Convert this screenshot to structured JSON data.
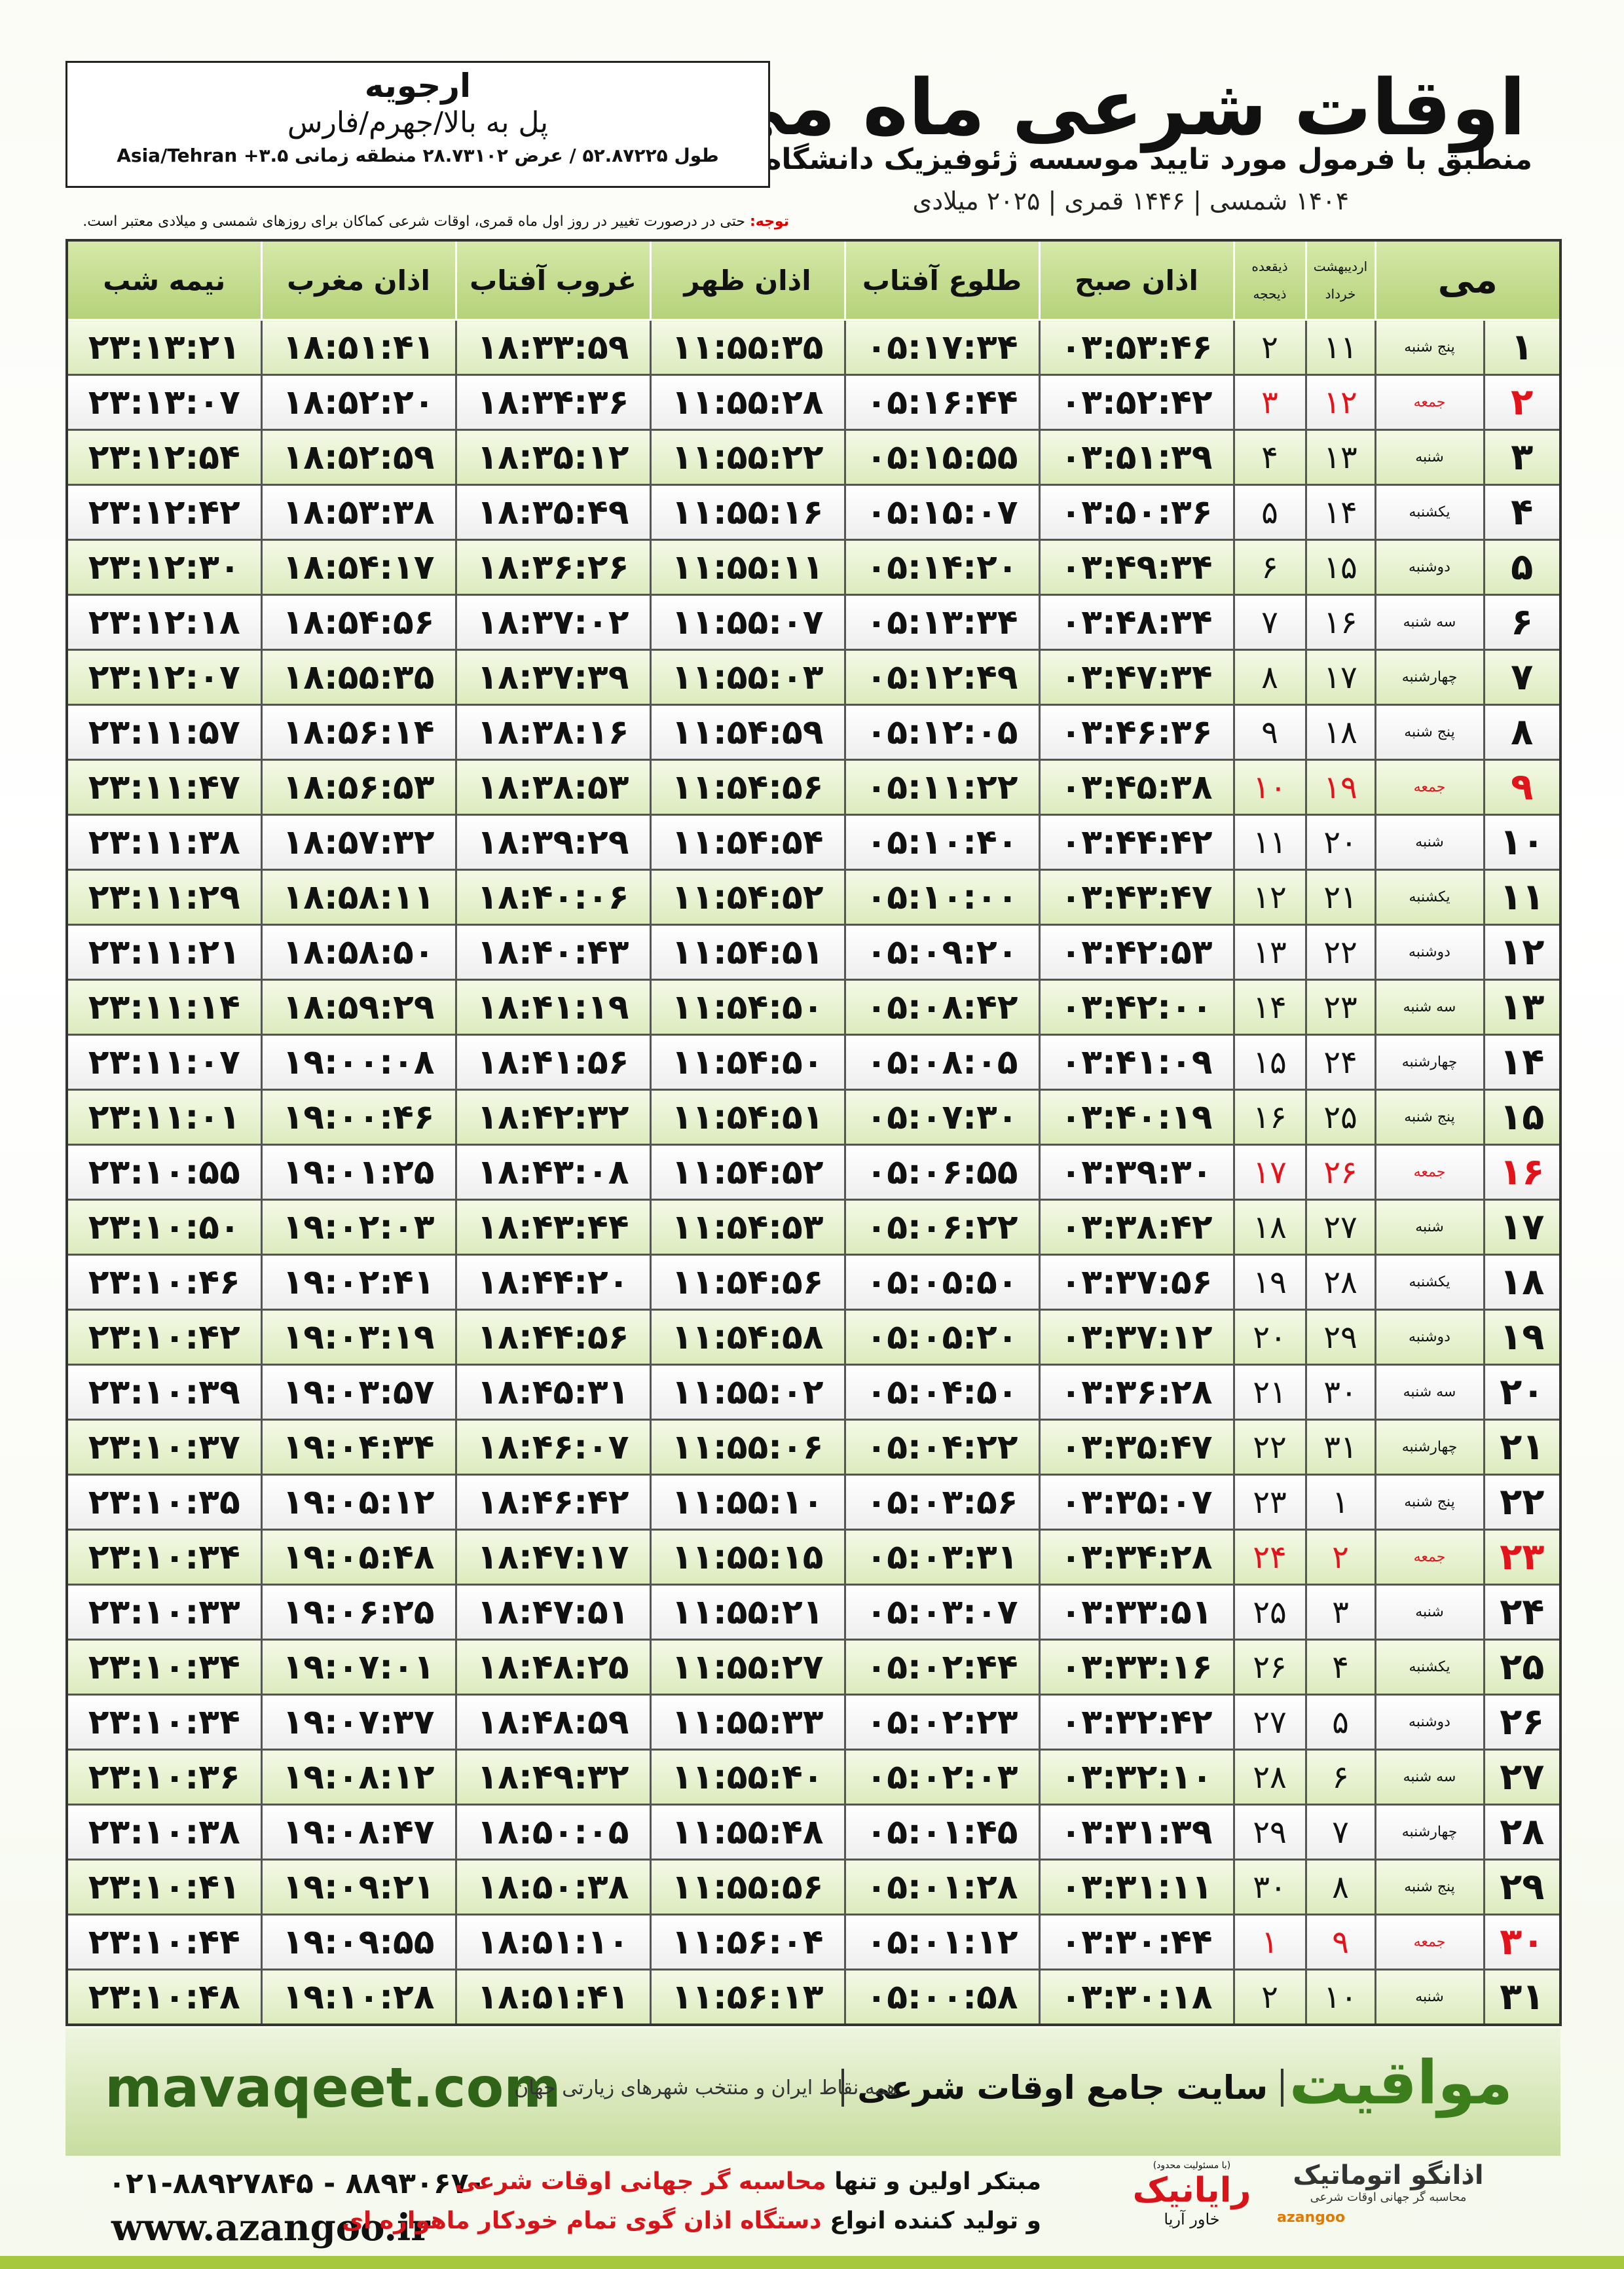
{
  "header": {
    "title": "اوقات شرعی ماه می",
    "subtitle": "منطبق با فرمول مورد تایید موسسه ژئوفیزیک دانشگاه تهران",
    "dates": "۱۴۰۴ شمسی | ۱۴۴۶ قمری | ۲۰۲۵ میلادی"
  },
  "location": {
    "name": "ارجویه",
    "region": "پل به بالا/جهرم/فارس",
    "coords": "طول ۵۲.۸۷۲۲۵ / عرض ۲۸.۷۳۱۰۲ منطقه زمانی ۳.۵+ Asia/Tehran"
  },
  "note": {
    "label": "توجه:",
    "text": "حتی در درصورت تغییر در روز اول ماه قمری، اوقات شرعی کماکان برای روزهای شمسی و میلادی معتبر است."
  },
  "table": {
    "columns": {
      "day": "می",
      "shamsi": [
        "اردیبهشت",
        "خرداد"
      ],
      "qamari": [
        "ذیقعده",
        "ذیحجه"
      ],
      "times": [
        "اذان صبح",
        "طلوع آفتاب",
        "اذان ظهر",
        "غروب آفتاب",
        "اذان مغرب",
        "نیمه شب"
      ]
    },
    "rows": [
      {
        "day": "۱",
        "weekday": "پنج شنبه",
        "shamsi": "۱۱",
        "qamari": "۲",
        "times": [
          "۰۳:۵۳:۴۶",
          "۰۵:۱۷:۳۴",
          "۱۱:۵۵:۳۵",
          "۱۸:۳۳:۵۹",
          "۱۸:۵۱:۴۱",
          "۲۳:۱۳:۲۱"
        ]
      },
      {
        "day": "۲",
        "weekday": "جمعه",
        "shamsi": "۱۲",
        "qamari": "۳",
        "times": [
          "۰۳:۵۲:۴۲",
          "۰۵:۱۶:۴۴",
          "۱۱:۵۵:۲۸",
          "۱۸:۳۴:۳۶",
          "۱۸:۵۲:۲۰",
          "۲۳:۱۳:۰۷"
        ],
        "color": "#e2141b"
      },
      {
        "day": "۳",
        "weekday": "شنبه",
        "shamsi": "۱۳",
        "qamari": "۴",
        "times": [
          "۰۳:۵۱:۳۹",
          "۰۵:۱۵:۵۵",
          "۱۱:۵۵:۲۲",
          "۱۸:۳۵:۱۲",
          "۱۸:۵۲:۵۹",
          "۲۳:۱۲:۵۴"
        ]
      },
      {
        "day": "۴",
        "weekday": "یکشنبه",
        "shamsi": "۱۴",
        "qamari": "۵",
        "times": [
          "۰۳:۵۰:۳۶",
          "۰۵:۱۵:۰۷",
          "۱۱:۵۵:۱۶",
          "۱۸:۳۵:۴۹",
          "۱۸:۵۳:۳۸",
          "۲۳:۱۲:۴۲"
        ]
      },
      {
        "day": "۵",
        "weekday": "دوشنبه",
        "shamsi": "۱۵",
        "qamari": "۶",
        "times": [
          "۰۳:۴۹:۳۴",
          "۰۵:۱۴:۲۰",
          "۱۱:۵۵:۱۱",
          "۱۸:۳۶:۲۶",
          "۱۸:۵۴:۱۷",
          "۲۳:۱۲:۳۰"
        ]
      },
      {
        "day": "۶",
        "weekday": "سه شنبه",
        "shamsi": "۱۶",
        "qamari": "۷",
        "times": [
          "۰۳:۴۸:۳۴",
          "۰۵:۱۳:۳۴",
          "۱۱:۵۵:۰۷",
          "۱۸:۳۷:۰۲",
          "۱۸:۵۴:۵۶",
          "۲۳:۱۲:۱۸"
        ]
      },
      {
        "day": "۷",
        "weekday": "چهارشنبه",
        "shamsi": "۱۷",
        "qamari": "۸",
        "times": [
          "۰۳:۴۷:۳۴",
          "۰۵:۱۲:۴۹",
          "۱۱:۵۵:۰۳",
          "۱۸:۳۷:۳۹",
          "۱۸:۵۵:۳۵",
          "۲۳:۱۲:۰۷"
        ]
      },
      {
        "day": "۸",
        "weekday": "پنج شنبه",
        "shamsi": "۱۸",
        "qamari": "۹",
        "times": [
          "۰۳:۴۶:۳۶",
          "۰۵:۱۲:۰۵",
          "۱۱:۵۴:۵۹",
          "۱۸:۳۸:۱۶",
          "۱۸:۵۶:۱۴",
          "۲۳:۱۱:۵۷"
        ]
      },
      {
        "day": "۹",
        "weekday": "جمعه",
        "shamsi": "۱۹",
        "qamari": "۱۰",
        "times": [
          "۰۳:۴۵:۳۸",
          "۰۵:۱۱:۲۲",
          "۱۱:۵۴:۵۶",
          "۱۸:۳۸:۵۳",
          "۱۸:۵۶:۵۳",
          "۲۳:۱۱:۴۷"
        ],
        "color": "#e2141b"
      },
      {
        "day": "۱۰",
        "weekday": "شنبه",
        "shamsi": "۲۰",
        "qamari": "۱۱",
        "times": [
          "۰۳:۴۴:۴۲",
          "۰۵:۱۰:۴۰",
          "۱۱:۵۴:۵۴",
          "۱۸:۳۹:۲۹",
          "۱۸:۵۷:۳۲",
          "۲۳:۱۱:۳۸"
        ]
      },
      {
        "day": "۱۱",
        "weekday": "یکشنبه",
        "shamsi": "۲۱",
        "qamari": "۱۲",
        "times": [
          "۰۳:۴۳:۴۷",
          "۰۵:۱۰:۰۰",
          "۱۱:۵۴:۵۲",
          "۱۸:۴۰:۰۶",
          "۱۸:۵۸:۱۱",
          "۲۳:۱۱:۲۹"
        ]
      },
      {
        "day": "۱۲",
        "weekday": "دوشنبه",
        "shamsi": "۲۲",
        "qamari": "۱۳",
        "times": [
          "۰۳:۴۲:۵۳",
          "۰۵:۰۹:۲۰",
          "۱۱:۵۴:۵۱",
          "۱۸:۴۰:۴۳",
          "۱۸:۵۸:۵۰",
          "۲۳:۱۱:۲۱"
        ]
      },
      {
        "day": "۱۳",
        "weekday": "سه شنبه",
        "shamsi": "۲۳",
        "qamari": "۱۴",
        "times": [
          "۰۳:۴۲:۰۰",
          "۰۵:۰۸:۴۲",
          "۱۱:۵۴:۵۰",
          "۱۸:۴۱:۱۹",
          "۱۸:۵۹:۲۹",
          "۲۳:۱۱:۱۴"
        ]
      },
      {
        "day": "۱۴",
        "weekday": "چهارشنبه",
        "shamsi": "۲۴",
        "qamari": "۱۵",
        "times": [
          "۰۳:۴۱:۰۹",
          "۰۵:۰۸:۰۵",
          "۱۱:۵۴:۵۰",
          "۱۸:۴۱:۵۶",
          "۱۹:۰۰:۰۸",
          "۲۳:۱۱:۰۷"
        ]
      },
      {
        "day": "۱۵",
        "weekday": "پنج شنبه",
        "shamsi": "۲۵",
        "qamari": "۱۶",
        "times": [
          "۰۳:۴۰:۱۹",
          "۰۵:۰۷:۳۰",
          "۱۱:۵۴:۵۱",
          "۱۸:۴۲:۳۲",
          "۱۹:۰۰:۴۶",
          "۲۳:۱۱:۰۱"
        ]
      },
      {
        "day": "۱۶",
        "weekday": "جمعه",
        "shamsi": "۲۶",
        "qamari": "۱۷",
        "times": [
          "۰۳:۳۹:۳۰",
          "۰۵:۰۶:۵۵",
          "۱۱:۵۴:۵۲",
          "۱۸:۴۳:۰۸",
          "۱۹:۰۱:۲۵",
          "۲۳:۱۰:۵۵"
        ],
        "color": "#e2141b"
      },
      {
        "day": "۱۷",
        "weekday": "شنبه",
        "shamsi": "۲۷",
        "qamari": "۱۸",
        "times": [
          "۰۳:۳۸:۴۲",
          "۰۵:۰۶:۲۲",
          "۱۱:۵۴:۵۳",
          "۱۸:۴۳:۴۴",
          "۱۹:۰۲:۰۳",
          "۲۳:۱۰:۵۰"
        ]
      },
      {
        "day": "۱۸",
        "weekday": "یکشنبه",
        "shamsi": "۲۸",
        "qamari": "۱۹",
        "times": [
          "۰۳:۳۷:۵۶",
          "۰۵:۰۵:۵۰",
          "۱۱:۵۴:۵۶",
          "۱۸:۴۴:۲۰",
          "۱۹:۰۲:۴۱",
          "۲۳:۱۰:۴۶"
        ]
      },
      {
        "day": "۱۹",
        "weekday": "دوشنبه",
        "shamsi": "۲۹",
        "qamari": "۲۰",
        "times": [
          "۰۳:۳۷:۱۲",
          "۰۵:۰۵:۲۰",
          "۱۱:۵۴:۵۸",
          "۱۸:۴۴:۵۶",
          "۱۹:۰۳:۱۹",
          "۲۳:۱۰:۴۲"
        ]
      },
      {
        "day": "۲۰",
        "weekday": "سه شنبه",
        "shamsi": "۳۰",
        "qamari": "۲۱",
        "times": [
          "۰۳:۳۶:۲۸",
          "۰۵:۰۴:۵۰",
          "۱۱:۵۵:۰۲",
          "۱۸:۴۵:۳۱",
          "۱۹:۰۳:۵۷",
          "۲۳:۱۰:۳۹"
        ]
      },
      {
        "day": "۲۱",
        "weekday": "چهارشنبه",
        "shamsi": "۳۱",
        "qamari": "۲۲",
        "times": [
          "۰۳:۳۵:۴۷",
          "۰۵:۰۴:۲۲",
          "۱۱:۵۵:۰۶",
          "۱۸:۴۶:۰۷",
          "۱۹:۰۴:۳۴",
          "۲۳:۱۰:۳۷"
        ]
      },
      {
        "day": "۲۲",
        "weekday": "پنج شنبه",
        "shamsi": "۱",
        "qamari": "۲۳",
        "times": [
          "۰۳:۳۵:۰۷",
          "۰۵:۰۳:۵۶",
          "۱۱:۵۵:۱۰",
          "۱۸:۴۶:۴۲",
          "۱۹:۰۵:۱۲",
          "۲۳:۱۰:۳۵"
        ]
      },
      {
        "day": "۲۳",
        "weekday": "جمعه",
        "shamsi": "۲",
        "qamari": "۲۴",
        "times": [
          "۰۳:۳۴:۲۸",
          "۰۵:۰۳:۳۱",
          "۱۱:۵۵:۱۵",
          "۱۸:۴۷:۱۷",
          "۱۹:۰۵:۴۸",
          "۲۳:۱۰:۳۴"
        ],
        "color": "#e2141b"
      },
      {
        "day": "۲۴",
        "weekday": "شنبه",
        "shamsi": "۳",
        "qamari": "۲۵",
        "times": [
          "۰۳:۳۳:۵۱",
          "۰۵:۰۳:۰۷",
          "۱۱:۵۵:۲۱",
          "۱۸:۴۷:۵۱",
          "۱۹:۰۶:۲۵",
          "۲۳:۱۰:۳۳"
        ]
      },
      {
        "day": "۲۵",
        "weekday": "یکشنبه",
        "shamsi": "۴",
        "qamari": "۲۶",
        "times": [
          "۰۳:۳۳:۱۶",
          "۰۵:۰۲:۴۴",
          "۱۱:۵۵:۲۷",
          "۱۸:۴۸:۲۵",
          "۱۹:۰۷:۰۱",
          "۲۳:۱۰:۳۴"
        ]
      },
      {
        "day": "۲۶",
        "weekday": "دوشنبه",
        "shamsi": "۵",
        "qamari": "۲۷",
        "times": [
          "۰۳:۳۲:۴۲",
          "۰۵:۰۲:۲۳",
          "۱۱:۵۵:۳۳",
          "۱۸:۴۸:۵۹",
          "۱۹:۰۷:۳۷",
          "۲۳:۱۰:۳۴"
        ]
      },
      {
        "day": "۲۷",
        "weekday": "سه شنبه",
        "shamsi": "۶",
        "qamari": "۲۸",
        "times": [
          "۰۳:۳۲:۱۰",
          "۰۵:۰۲:۰۳",
          "۱۱:۵۵:۴۰",
          "۱۸:۴۹:۳۲",
          "۱۹:۰۸:۱۲",
          "۲۳:۱۰:۳۶"
        ]
      },
      {
        "day": "۲۸",
        "weekday": "چهارشنبه",
        "shamsi": "۷",
        "qamari": "۲۹",
        "times": [
          "۰۳:۳۱:۳۹",
          "۰۵:۰۱:۴۵",
          "۱۱:۵۵:۴۸",
          "۱۸:۵۰:۰۵",
          "۱۹:۰۸:۴۷",
          "۲۳:۱۰:۳۸"
        ]
      },
      {
        "day": "۲۹",
        "weekday": "پنج شنبه",
        "shamsi": "۸",
        "qamari": "۳۰",
        "times": [
          "۰۳:۳۱:۱۱",
          "۰۵:۰۱:۲۸",
          "۱۱:۵۵:۵۶",
          "۱۸:۵۰:۳۸",
          "۱۹:۰۹:۲۱",
          "۲۳:۱۰:۴۱"
        ]
      },
      {
        "day": "۳۰",
        "weekday": "جمعه",
        "shamsi": "۹",
        "qamari": "۱",
        "times": [
          "۰۳:۳۰:۴۴",
          "۰۵:۰۱:۱۲",
          "۱۱:۵۶:۰۴",
          "۱۸:۵۱:۱۰",
          "۱۹:۰۹:۵۵",
          "۲۳:۱۰:۴۴"
        ],
        "color": "#e2141b"
      },
      {
        "day": "۳۱",
        "weekday": "شنبه",
        "shamsi": "۱۰",
        "qamari": "۲",
        "times": [
          "۰۳:۳۰:۱۸",
          "۰۵:۰۰:۵۸",
          "۱۱:۵۶:۱۳",
          "۱۸:۵۱:۴۱",
          "۱۹:۱۰:۲۸",
          "۲۳:۱۰:۴۸"
        ]
      }
    ]
  },
  "banner": {
    "site": "mavaqeet.com",
    "brand": "مواقیت",
    "tagline": "سایت جامع اوقات شرعی",
    "coverage": "همه نقاط ایران و منتخب شهرهای زیارتی جهان"
  },
  "contact": {
    "phone": "۰۲۱-۸۸۹۲۷۸۴۵ - ۸۸۹۳۰۶۷۰",
    "web": "www.azangoo.ir",
    "line1": [
      "مبتکر اولین و تنها",
      "محاسبه گر جهانی اوقات شرعی"
    ],
    "line2": [
      "و تولید کننده انواع",
      "دستگاه اذان گوی تمام خودکار ماهواره ای"
    ],
    "partner": {
      "name": "رایانیک",
      "sub": "خاور آریا",
      "note": "(با مسئولیت محدود)"
    },
    "logo": {
      "name": "اذانگو اتوماتیک",
      "sub": "محاسبه گر جهانی اوقات شرعی",
      "latin": "azangoo"
    }
  }
}
